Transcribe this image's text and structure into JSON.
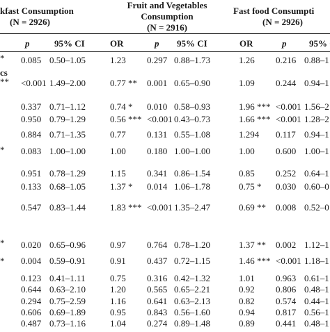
{
  "groups": [
    {
      "title": "kfast Consumption",
      "n": "(N = 2926)"
    },
    {
      "title": "Fruit and Vegetables",
      "title2": "Consumption",
      "n": "(N = 2916)"
    },
    {
      "title": "Fast food Consumpti",
      "n": "(N = 2926)"
    }
  ],
  "col_headers": {
    "p": "p",
    "ci": "95% CI",
    "or": "OR"
  },
  "stub_marks": [
    "*",
    "cs",
    "**",
    "*",
    "*",
    "*"
  ],
  "rows": [
    {
      "b_p": "0.085",
      "b_ci": "0.50–1.05",
      "f_or": "1.23",
      "f_p": "0.297",
      "f_ci": "0.88–1.73",
      "ff_or": "1.26",
      "ff_p": "0.216",
      "ff_ci": "0.88–1"
    },
    {
      "b_p": "<0.001",
      "b_ci": "1.49–2.00",
      "f_or": "0.77 **",
      "f_p": "0.001",
      "f_ci": "0.65–0.90",
      "ff_or": "1.09",
      "ff_p": "0.244",
      "ff_ci": "0.94–1"
    },
    {
      "b_p": "0.337",
      "b_ci": "0.71–1.12",
      "f_or": "0.74 *",
      "f_p": "0.010",
      "f_ci": "0.58–0.93",
      "ff_or": "1.96 ***",
      "ff_p": "<0.001",
      "ff_ci": "1.56–2"
    },
    {
      "b_p": "0.950",
      "b_ci": "0.79–1.29",
      "f_or": "0.56 ***",
      "f_p": "<0.001",
      "f_ci": "0.43–0.73",
      "ff_or": "1.66 ***",
      "ff_p": "<0.001",
      "ff_ci": "1.28–2"
    },
    {
      "b_p": "0.884",
      "b_ci": "0.71–1.35",
      "f_or": "0.77",
      "f_p": "0.131",
      "f_ci": "0.55–1.08",
      "ff_or": "1.294",
      "ff_p": "0.117",
      "ff_ci": "0.94–1"
    },
    {
      "b_p": "0.083",
      "b_ci": "1.00–1.00",
      "f_or": "1.00",
      "f_p": "0.180",
      "f_ci": "1.00–1.00",
      "ff_or": "1.00",
      "ff_p": "0.600",
      "ff_ci": "1.00–1"
    },
    {
      "b_p": "0.951",
      "b_ci": "0.78–1.29",
      "f_or": "1.15",
      "f_p": "0.341",
      "f_ci": "0.86–1.54",
      "ff_or": "0.85",
      "ff_p": "0.252",
      "ff_ci": "0.64–1"
    },
    {
      "b_p": "0.133",
      "b_ci": "0.68–1.05",
      "f_or": "1.37 *",
      "f_p": "0.014",
      "f_ci": "1.06–1.78",
      "ff_or": "0.75 *",
      "ff_p": "0.030",
      "ff_ci": "0.60–0"
    },
    {
      "b_p": "0.547",
      "b_ci": "0.83–1.44",
      "f_or": "1.83 ***",
      "f_p": "<0.001",
      "f_ci": "1.35–2.47",
      "ff_or": "0.69 **",
      "ff_p": "0.008",
      "ff_ci": "0.52–0"
    },
    {
      "b_p": "0.020",
      "b_ci": "0.65–0.96",
      "f_or": "0.97",
      "f_p": "0.764",
      "f_ci": "0.78–1.20",
      "ff_or": "1.37 **",
      "ff_p": "0.002",
      "ff_ci": "1.12–1"
    },
    {
      "b_p": "0.004",
      "b_ci": "0.59–0.91",
      "f_or": "0.91",
      "f_p": "0.437",
      "f_ci": "0.72–1.15",
      "ff_or": "1.46 ***",
      "ff_p": "<0.001",
      "ff_ci": "1.18–1"
    },
    {
      "b_p": "0.123",
      "b_ci": "0.41–1.11",
      "f_or": "0.75",
      "f_p": "0.316",
      "f_ci": "0.42–1.32",
      "ff_or": "1.01",
      "ff_p": "0.963",
      "ff_ci": "0.61–1"
    },
    {
      "b_p": "0.644",
      "b_ci": "0.63–2.10",
      "f_or": "1.20",
      "f_p": "0.565",
      "f_ci": "0.65–2.21",
      "ff_or": "0.92",
      "ff_p": "0.806",
      "ff_ci": "0.48–1"
    },
    {
      "b_p": "0.294",
      "b_ci": "0.75–2.59",
      "f_or": "1.16",
      "f_p": "0.641",
      "f_ci": "0.63–2.13",
      "ff_or": "0.82",
      "ff_p": "0.574",
      "ff_ci": "0.44–1"
    },
    {
      "b_p": "0.606",
      "b_ci": "0.69–1.89",
      "f_or": "0.95",
      "f_p": "0.843",
      "f_ci": "0.56–1.60",
      "ff_or": "0.94",
      "ff_p": "0.817",
      "ff_ci": "0.56–1"
    },
    {
      "b_p": "0.487",
      "b_ci": "0.73–1.16",
      "f_or": "1.04",
      "f_p": "0.274",
      "f_ci": "0.89–1.48",
      "ff_or": "0.89",
      "ff_p": "0.441",
      "ff_ci": "0.48–1"
    }
  ]
}
